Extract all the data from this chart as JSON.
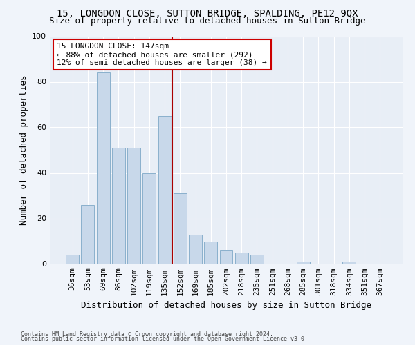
{
  "title": "15, LONGDON CLOSE, SUTTON BRIDGE, SPALDING, PE12 9QX",
  "subtitle": "Size of property relative to detached houses in Sutton Bridge",
  "xlabel": "Distribution of detached houses by size in Sutton Bridge",
  "ylabel": "Number of detached properties",
  "categories": [
    "36sqm",
    "53sqm",
    "69sqm",
    "86sqm",
    "102sqm",
    "119sqm",
    "135sqm",
    "152sqm",
    "169sqm",
    "185sqm",
    "202sqm",
    "218sqm",
    "235sqm",
    "251sqm",
    "268sqm",
    "285sqm",
    "301sqm",
    "318sqm",
    "334sqm",
    "351sqm",
    "367sqm"
  ],
  "values": [
    4,
    26,
    84,
    51,
    51,
    40,
    65,
    31,
    13,
    10,
    6,
    5,
    4,
    0,
    0,
    1,
    0,
    0,
    1,
    0,
    0
  ],
  "bar_color": "#c8d8ea",
  "bar_edge_color": "#8ab0cc",
  "bg_color": "#e8eef6",
  "grid_color": "#ffffff",
  "fig_bg_color": "#f0f4fa",
  "vline_color": "#aa0000",
  "vline_x_index": 7,
  "annotation_text": "15 LONGDON CLOSE: 147sqm\n← 88% of detached houses are smaller (292)\n12% of semi-detached houses are larger (38) →",
  "annotation_box_color": "#ffffff",
  "annotation_box_edge": "#cc0000",
  "footer1": "Contains HM Land Registry data © Crown copyright and database right 2024.",
  "footer2": "Contains public sector information licensed under the Open Government Licence v3.0.",
  "ylim": [
    0,
    100
  ],
  "yticks": [
    0,
    20,
    40,
    60,
    80,
    100
  ],
  "title_fontsize": 10,
  "subtitle_fontsize": 9,
  "xlabel_fontsize": 9,
  "ylabel_fontsize": 9,
  "tick_fontsize": 8,
  "annotation_fontsize": 8,
  "footer_fontsize": 6
}
